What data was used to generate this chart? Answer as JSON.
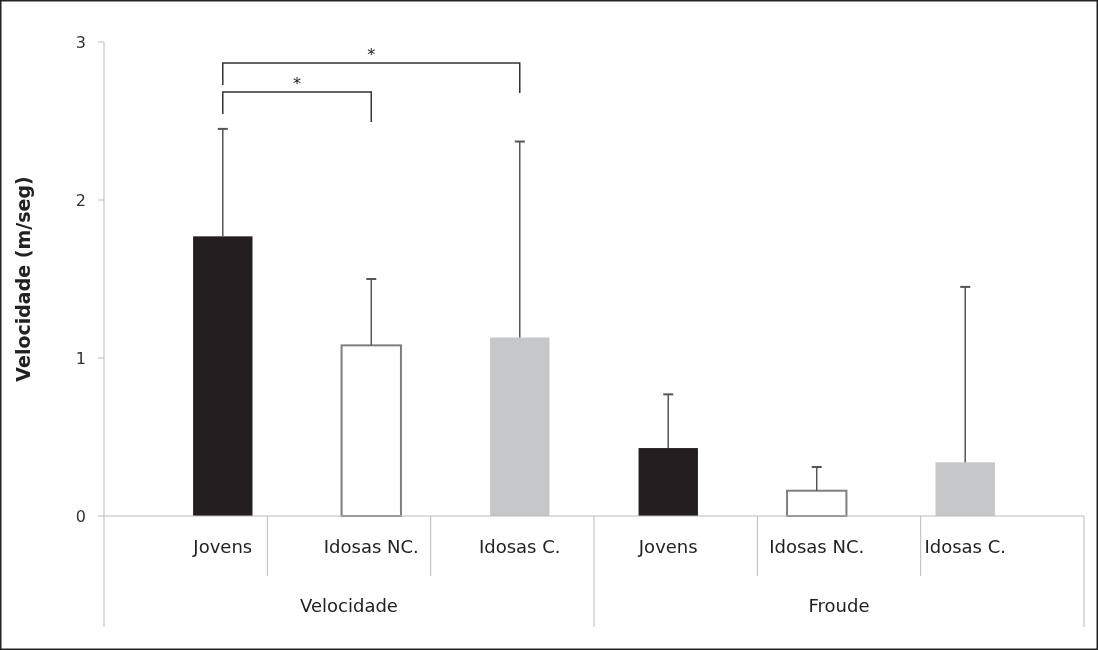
{
  "chart_data": {
    "type": "bar",
    "ylabel": "Velocidade (m/seg)",
    "categories": [
      "Jovens",
      "Idosas NC.",
      "Idosas C.",
      "Jovens",
      "Idosas NC.",
      "Idosas C."
    ],
    "values": [
      1.77,
      1.08,
      1.13,
      0.43,
      0.16,
      0.34
    ],
    "colors": [
      "#231f20",
      "#ffffff",
      "#c6c7c9",
      "#231f20",
      "#ffffff",
      "#c6c7c9"
    ],
    "errors": [
      [
        1.77,
        2.45
      ],
      [
        1.08,
        1.5
      ],
      [
        1.13,
        2.37
      ],
      [
        0.43,
        0.77
      ],
      [
        0.16,
        0.31
      ],
      [
        0.34,
        1.45
      ]
    ],
    "ylim": [
      0,
      3
    ],
    "yticks": [
      0,
      1,
      2,
      3
    ],
    "grid": false,
    "annotations": [
      "*",
      "*",
      "Velocidade",
      "Froude"
    ]
  }
}
